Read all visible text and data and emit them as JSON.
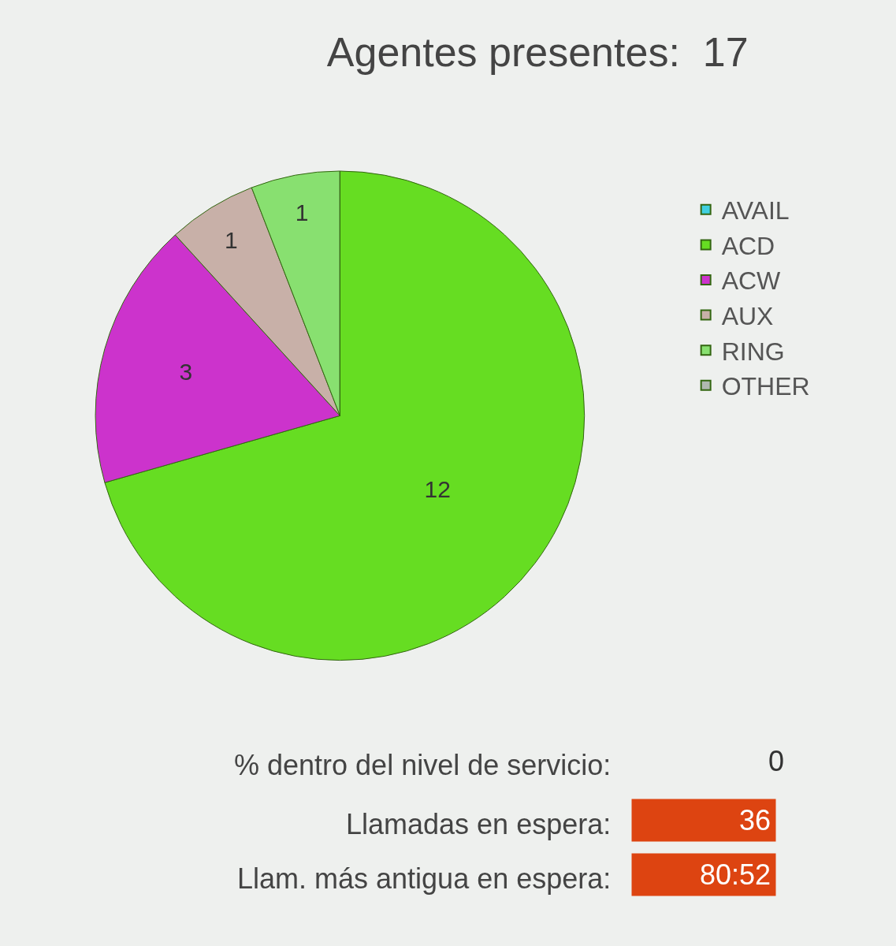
{
  "chart_data": {
    "type": "pie",
    "title": "Agentes presentes:  17",
    "categories": [
      "AVAIL",
      "ACD",
      "ACW",
      "AUX",
      "RING",
      "OTHER"
    ],
    "values": [
      0,
      12,
      3,
      1,
      1,
      0
    ],
    "colors": [
      "#40d0e0",
      "#66dd22",
      "#cc33cc",
      "#c8b0a8",
      "#88e070",
      "#b0b8b0"
    ],
    "value_labels": [
      null,
      "12",
      "3",
      "1",
      "1",
      null
    ],
    "legend": "right",
    "annotations": [
      "% dentro del nivel de servicio:",
      "0",
      "Llamadas en espera:",
      "36",
      "Llam. más antigua en espera:",
      "80:52"
    ]
  }
}
